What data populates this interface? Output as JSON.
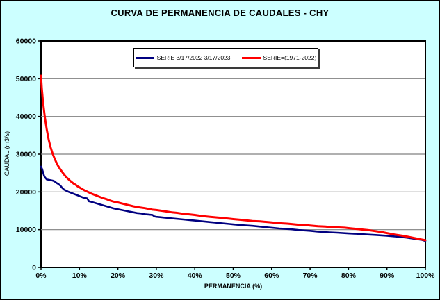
{
  "window": {
    "background": "#CCFFFF",
    "border_color": "#000000"
  },
  "chart_data": {
    "type": "line",
    "title": "CURVA DE PERMANENCIA DE CAUDALES - CHY",
    "xlabel": "PERMANENCIA (%)",
    "ylabel": "CAUDAL (m3/s)",
    "xlim": [
      0,
      100
    ],
    "ylim": [
      0,
      60000
    ],
    "x_tick_values": [
      0,
      10,
      20,
      30,
      40,
      50,
      60,
      70,
      80,
      90,
      100
    ],
    "x_tick_labels": [
      "0%",
      "10%",
      "20%",
      "30%",
      "40%",
      "50%",
      "60%",
      "70%",
      "80%",
      "90%",
      "100%"
    ],
    "y_tick_values": [
      0,
      10000,
      20000,
      30000,
      40000,
      50000,
      60000
    ],
    "y_tick_labels": [
      "0",
      "10000",
      "20000",
      "30000",
      "40000",
      "50000",
      "60000"
    ],
    "grid": "horizontal-only",
    "gridline_color": "#808080",
    "plot_background": "#FFFFFF",
    "axis_color": "#000000",
    "legend_position": "top-center",
    "series": [
      {
        "name": "SERIE 3/17/2022 3/17/2023",
        "color": "#000080",
        "width": 2.6,
        "points": [
          [
            0,
            26700
          ],
          [
            0.3,
            26000
          ],
          [
            0.5,
            25300
          ],
          [
            0.8,
            24300
          ],
          [
            1,
            23900
          ],
          [
            1.5,
            23300
          ],
          [
            2,
            23200
          ],
          [
            3,
            23000
          ],
          [
            3.5,
            22800
          ],
          [
            4,
            22400
          ],
          [
            4.5,
            22100
          ],
          [
            5,
            21700
          ],
          [
            5.5,
            21100
          ],
          [
            6,
            20600
          ],
          [
            7,
            20100
          ],
          [
            8,
            19700
          ],
          [
            9,
            19300
          ],
          [
            10,
            18900
          ],
          [
            11,
            18500
          ],
          [
            12,
            18300
          ],
          [
            12.5,
            17500
          ],
          [
            13,
            17400
          ],
          [
            14,
            17100
          ],
          [
            15,
            16800
          ],
          [
            16,
            16500
          ],
          [
            17,
            16200
          ],
          [
            18,
            15900
          ],
          [
            19,
            15600
          ],
          [
            20,
            15400
          ],
          [
            21,
            15200
          ],
          [
            22,
            15000
          ],
          [
            23,
            14800
          ],
          [
            24,
            14600
          ],
          [
            25,
            14400
          ],
          [
            26,
            14300
          ],
          [
            27,
            14100
          ],
          [
            28,
            14000
          ],
          [
            29,
            13900
          ],
          [
            29.5,
            13500
          ],
          [
            30,
            13400
          ],
          [
            31,
            13300
          ],
          [
            32,
            13200
          ],
          [
            33,
            13100
          ],
          [
            34,
            13000
          ],
          [
            35,
            12900
          ],
          [
            37,
            12700
          ],
          [
            39,
            12500
          ],
          [
            40,
            12400
          ],
          [
            42,
            12200
          ],
          [
            44,
            12000
          ],
          [
            45,
            11900
          ],
          [
            47,
            11700
          ],
          [
            49,
            11500
          ],
          [
            50,
            11400
          ],
          [
            52,
            11200
          ],
          [
            55,
            11000
          ],
          [
            57,
            10800
          ],
          [
            59,
            10600
          ],
          [
            60,
            10500
          ],
          [
            62,
            10300
          ],
          [
            65,
            10100
          ],
          [
            67,
            9900
          ],
          [
            70,
            9700
          ],
          [
            72,
            9500
          ],
          [
            75,
            9300
          ],
          [
            77,
            9200
          ],
          [
            80,
            9000
          ],
          [
            82,
            8900
          ],
          [
            85,
            8700
          ],
          [
            87,
            8600
          ],
          [
            90,
            8400
          ],
          [
            92,
            8200
          ],
          [
            95,
            7900
          ],
          [
            97,
            7600
          ],
          [
            99,
            7300
          ],
          [
            100,
            7000
          ]
        ]
      },
      {
        "name": "SERIE=(1971-2022)",
        "color": "#FF0000",
        "width": 3,
        "points": [
          [
            0,
            50800
          ],
          [
            0.2,
            47500
          ],
          [
            0.5,
            44000
          ],
          [
            0.8,
            41500
          ],
          [
            1,
            39800
          ],
          [
            1.5,
            36500
          ],
          [
            2,
            33800
          ],
          [
            2.5,
            31800
          ],
          [
            3,
            30200
          ],
          [
            3.5,
            28900
          ],
          [
            4,
            27800
          ],
          [
            4.5,
            26800
          ],
          [
            5,
            26000
          ],
          [
            5.5,
            25300
          ],
          [
            6,
            24600
          ],
          [
            6.5,
            24000
          ],
          [
            7,
            23500
          ],
          [
            7.5,
            23000
          ],
          [
            8,
            22600
          ],
          [
            8.5,
            22200
          ],
          [
            9,
            21900
          ],
          [
            9.5,
            21500
          ],
          [
            10,
            21200
          ],
          [
            11,
            20600
          ],
          [
            12,
            20100
          ],
          [
            13,
            19600
          ],
          [
            14,
            19200
          ],
          [
            15,
            18800
          ],
          [
            16,
            18400
          ],
          [
            17,
            18100
          ],
          [
            18,
            17700
          ],
          [
            19,
            17400
          ],
          [
            20,
            17200
          ],
          [
            22,
            16700
          ],
          [
            24,
            16200
          ],
          [
            25,
            16000
          ],
          [
            27,
            15700
          ],
          [
            29,
            15300
          ],
          [
            30,
            15200
          ],
          [
            32,
            14900
          ],
          [
            34,
            14600
          ],
          [
            35,
            14500
          ],
          [
            37,
            14200
          ],
          [
            39,
            14000
          ],
          [
            40,
            13900
          ],
          [
            42,
            13600
          ],
          [
            44,
            13400
          ],
          [
            45,
            13300
          ],
          [
            47,
            13100
          ],
          [
            49,
            12900
          ],
          [
            50,
            12800
          ],
          [
            52,
            12600
          ],
          [
            54,
            12400
          ],
          [
            55,
            12300
          ],
          [
            57,
            12200
          ],
          [
            59,
            12000
          ],
          [
            60,
            11900
          ],
          [
            62,
            11700
          ],
          [
            64,
            11600
          ],
          [
            65,
            11500
          ],
          [
            67,
            11300
          ],
          [
            69,
            11200
          ],
          [
            70,
            11100
          ],
          [
            72,
            10900
          ],
          [
            74,
            10800
          ],
          [
            75,
            10700
          ],
          [
            77,
            10600
          ],
          [
            79,
            10500
          ],
          [
            80,
            10400
          ],
          [
            82,
            10200
          ],
          [
            84,
            10000
          ],
          [
            85,
            9900
          ],
          [
            87,
            9600
          ],
          [
            89,
            9300
          ],
          [
            90,
            9100
          ],
          [
            92,
            8700
          ],
          [
            94,
            8400
          ],
          [
            95,
            8200
          ],
          [
            97,
            7800
          ],
          [
            99,
            7400
          ],
          [
            100,
            7200
          ]
        ]
      }
    ]
  }
}
